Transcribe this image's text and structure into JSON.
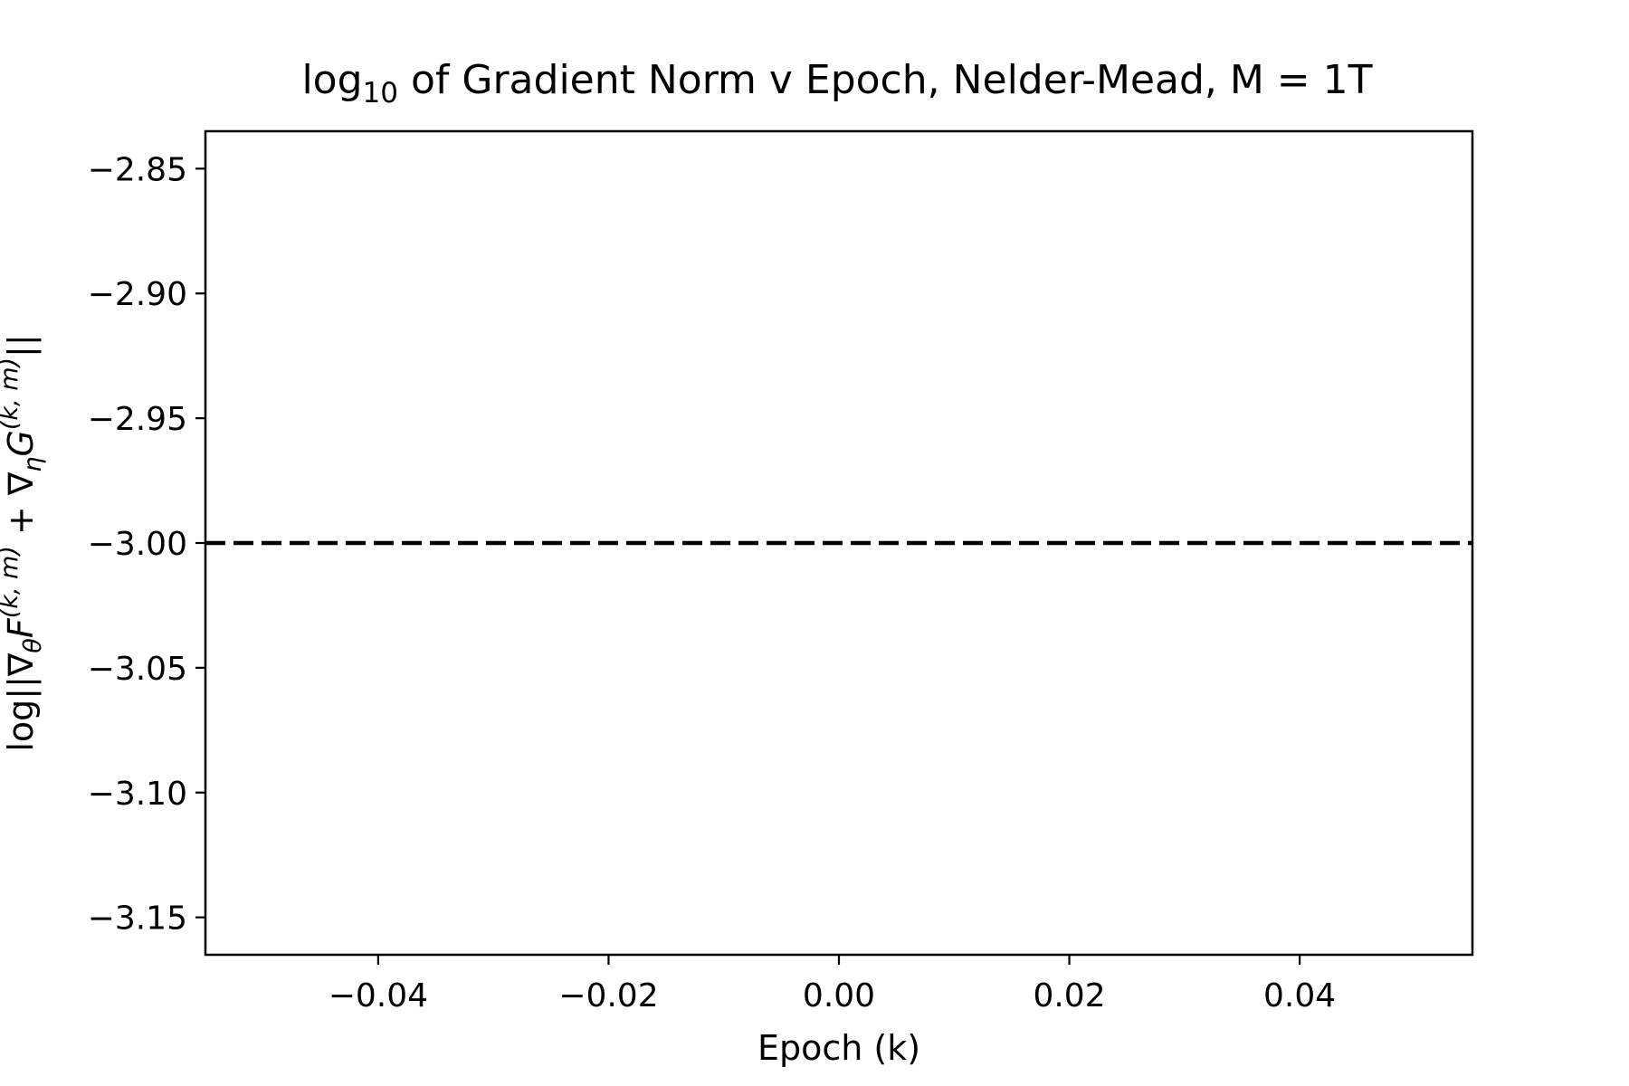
{
  "chart_data": {
    "type": "line",
    "title": {
      "prefix": "log",
      "subscript": "10",
      "rest": " of Gradient Norm v Epoch, Nelder-Mead, M = 1T"
    },
    "xlabel": "Epoch (k)",
    "ylabel": {
      "parts": [
        {
          "t": "log||",
          "style": "normal",
          "shift": "none"
        },
        {
          "t": "∇",
          "style": "normal",
          "shift": "none",
          "hat": true
        },
        {
          "t": "θ",
          "style": "italic",
          "shift": "sub"
        },
        {
          "t": "F",
          "style": "italic",
          "shift": "none"
        },
        {
          "t": "(k, m)",
          "style": "italic",
          "shift": "super"
        },
        {
          "t": " + ",
          "style": "normal",
          "shift": "none"
        },
        {
          "t": "∇",
          "style": "normal",
          "shift": "none",
          "hat": true
        },
        {
          "t": "η",
          "style": "italic",
          "shift": "sub"
        },
        {
          "t": "G",
          "style": "italic",
          "shift": "none"
        },
        {
          "t": "(k, m)",
          "style": "italic",
          "shift": "super"
        },
        {
          "t": "||",
          "style": "normal",
          "shift": "none"
        }
      ]
    },
    "xlim": [
      -0.055,
      0.055
    ],
    "ylim": [
      -3.165,
      -2.835
    ],
    "xticks": [
      -0.04,
      -0.02,
      0.0,
      0.02,
      0.04
    ],
    "xtick_labels": [
      "−0.04",
      "−0.02",
      "0.00",
      "0.02",
      "0.04"
    ],
    "yticks": [
      -2.85,
      -2.9,
      -2.95,
      -3.0,
      -3.05,
      -3.1,
      -3.15
    ],
    "ytick_labels": [
      "−2.85",
      "−2.90",
      "−2.95",
      "−3.00",
      "−3.05",
      "−3.10",
      "−3.15"
    ],
    "series": [],
    "hlines": [
      {
        "y": -3.0,
        "style": "dashed",
        "color": "#000000"
      }
    ],
    "grid": false,
    "legend": false,
    "colors": {
      "axes": "#000000",
      "background": "#ffffff"
    }
  }
}
